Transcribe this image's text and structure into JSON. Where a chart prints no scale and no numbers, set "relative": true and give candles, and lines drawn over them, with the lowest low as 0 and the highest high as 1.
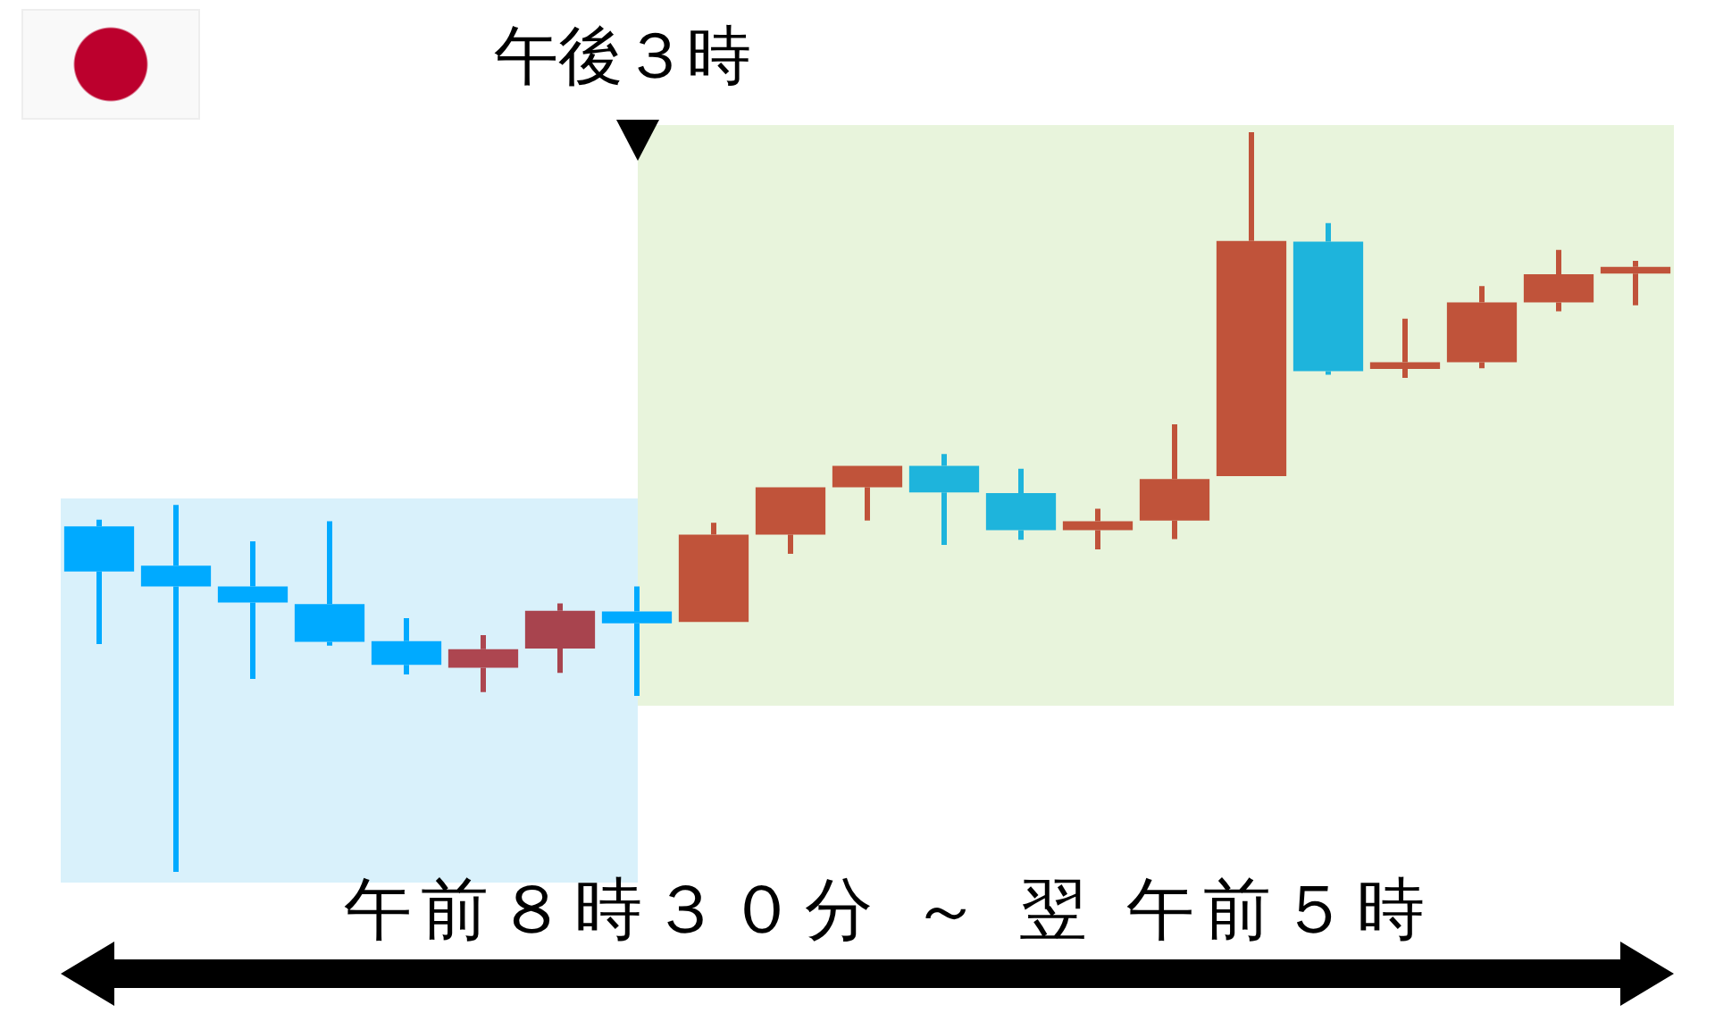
{
  "chart_data": {
    "type": "candlestick",
    "relative": true,
    "categories": [
      null,
      null,
      null,
      null,
      null,
      null,
      null,
      null,
      null,
      null,
      null,
      null,
      null,
      null,
      null,
      null,
      null,
      null,
      null,
      null,
      null
    ],
    "ohlc": [
      [
        0.467,
        0.476,
        0.308,
        0.406
      ],
      [
        0.414,
        0.496,
        0,
        0.386
      ],
      [
        0.386,
        0.447,
        0.261,
        0.364
      ],
      [
        0.362,
        0.474,
        0.306,
        0.311
      ],
      [
        0.312,
        0.343,
        0.267,
        0.28
      ],
      [
        0.276,
        0.32,
        0.243,
        0.301
      ],
      [
        0.302,
        0.363,
        0.269,
        0.353
      ],
      [
        0.352,
        0.386,
        0.238,
        0.336
      ],
      [
        0.338,
        0.472,
        0.338,
        0.456
      ],
      [
        0.456,
        0.52,
        0.43,
        0.52
      ],
      [
        0.52,
        0.549,
        0.475,
        0.549
      ],
      [
        0.549,
        0.565,
        0.442,
        0.513
      ],
      [
        0.512,
        0.545,
        0.449,
        0.462
      ],
      [
        0.462,
        0.491,
        0.436,
        0.474
      ],
      [
        0.475,
        0.605,
        0.45,
        0.531
      ],
      [
        0.535,
        1,
        0.535,
        0.853
      ],
      [
        0.852,
        0.877,
        0.672,
        0.677
      ],
      [
        0.68,
        0.748,
        0.668,
        0.689
      ],
      [
        0.689,
        0.792,
        0.681,
        0.77
      ],
      [
        0.77,
        0.841,
        0.758,
        0.808
      ],
      [
        0.809,
        0.826,
        0.766,
        0.818
      ]
    ],
    "colors": [
      "#00aaff",
      "#00aaff",
      "#00aaff",
      "#00aaff",
      "#00aaff",
      "#ad4650",
      "#a8444e",
      "#00aaff",
      "#c0533a",
      "#c0533a",
      "#c0533a",
      "#1eb4dc",
      "#1eb4dc",
      "#c0533a",
      "#c0533a",
      "#c0533a",
      "#1eb4dc",
      "#c0533a",
      "#c0533a",
      "#c0533a",
      "#c0533a"
    ],
    "annotations": [
      "午後３時",
      "午前８時３０分 ～ 翌 午前５時"
    ]
  }
}
